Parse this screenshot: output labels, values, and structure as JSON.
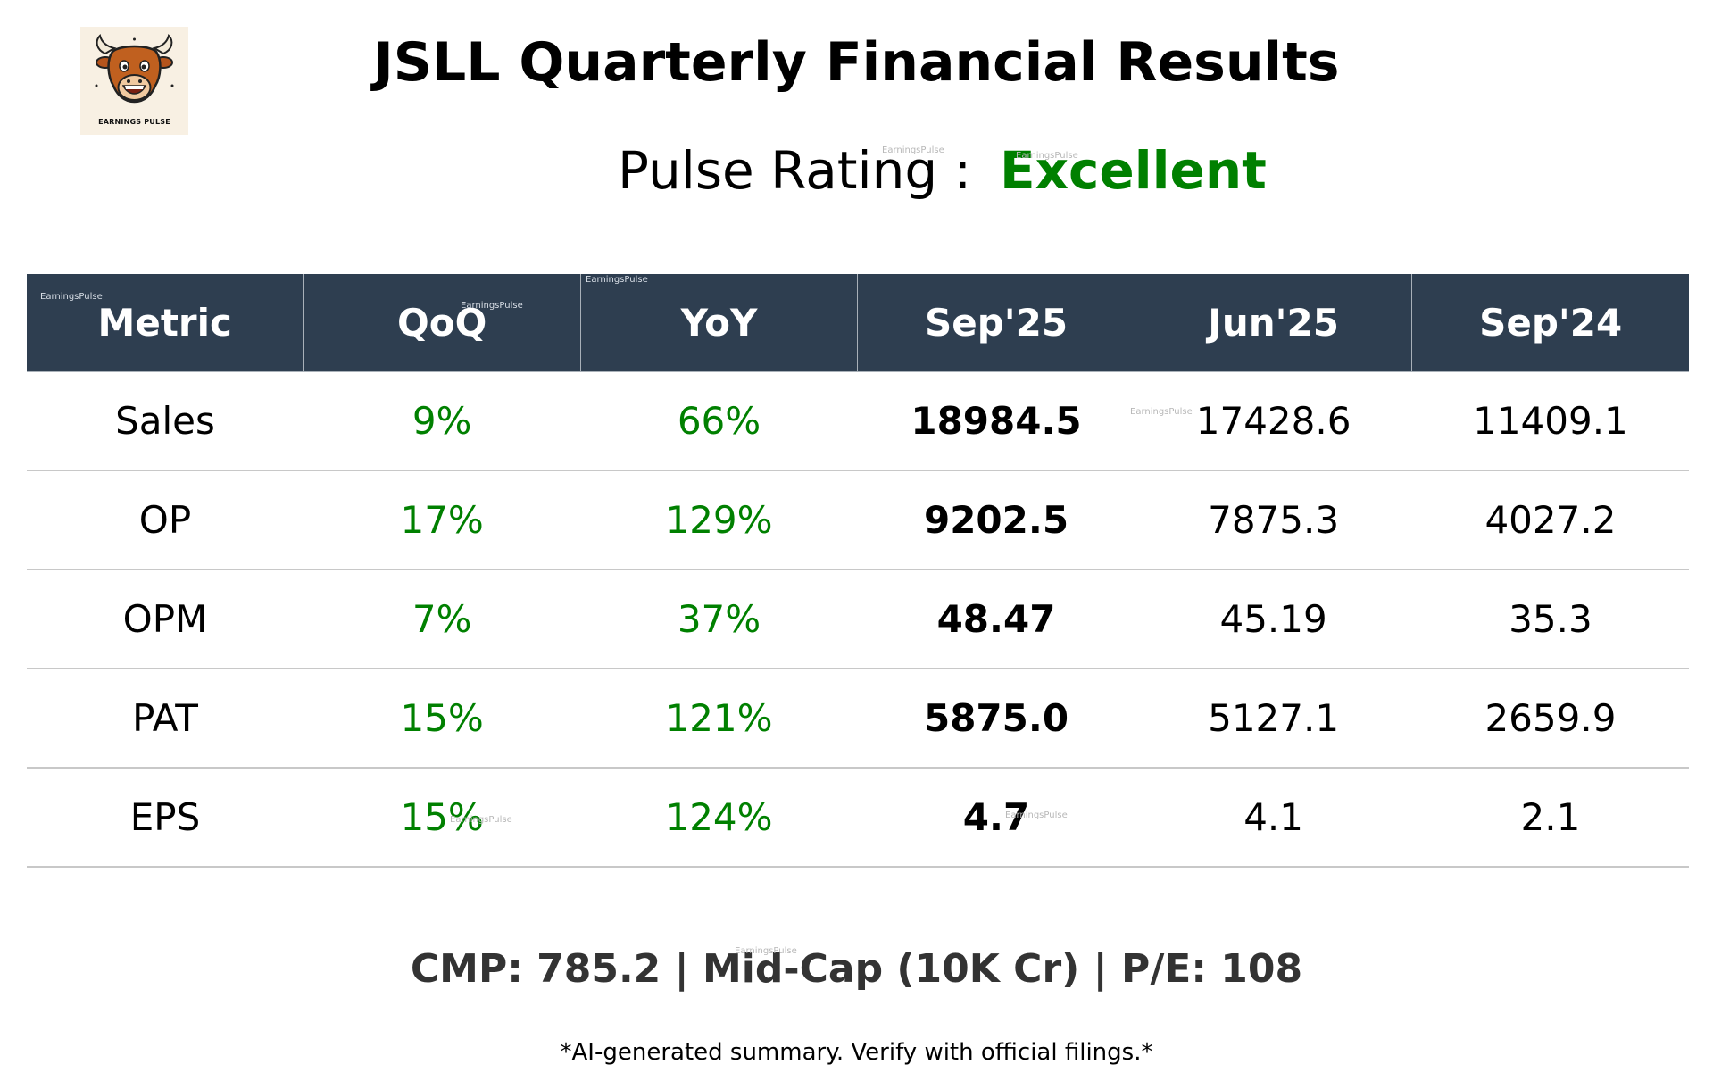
{
  "logo": {
    "text": "EARNINGS PULSE",
    "icon": "bull-mascot-icon"
  },
  "title": "JSLL Quarterly Financial Results",
  "rating": {
    "label": "Pulse Rating :",
    "value": "Excellent",
    "value_color": "#008000"
  },
  "table": {
    "headers": [
      "Metric",
      "QoQ",
      "YoY",
      "Sep'25",
      "Jun'25",
      "Sep'24"
    ],
    "header_bg": "#2e3e50",
    "rows": [
      {
        "metric": "Sales",
        "qoq": "9%",
        "yoy": "66%",
        "current": "18984.5",
        "prev_q": "17428.6",
        "prev_y": "11409.1"
      },
      {
        "metric": "OP",
        "qoq": "17%",
        "yoy": "129%",
        "current": "9202.5",
        "prev_q": "7875.3",
        "prev_y": "4027.2"
      },
      {
        "metric": "OPM",
        "qoq": "7%",
        "yoy": "37%",
        "current": "48.47",
        "prev_q": "45.19",
        "prev_y": "35.3"
      },
      {
        "metric": "PAT",
        "qoq": "15%",
        "yoy": "121%",
        "current": "5875.0",
        "prev_q": "5127.1",
        "prev_y": "2659.9"
      },
      {
        "metric": "EPS",
        "qoq": "15%",
        "yoy": "124%",
        "current": "4.7",
        "prev_q": "4.1",
        "prev_y": "2.1"
      }
    ]
  },
  "footer": {
    "stats": "CMP: 785.2 | Mid-Cap (10K Cr) | P/E: 108",
    "disclaimer": "*AI-generated summary. Verify with official filings.*"
  },
  "watermark": "EarningsPulse",
  "colors": {
    "growth_positive": "#008000",
    "footer_text": "#333333"
  }
}
